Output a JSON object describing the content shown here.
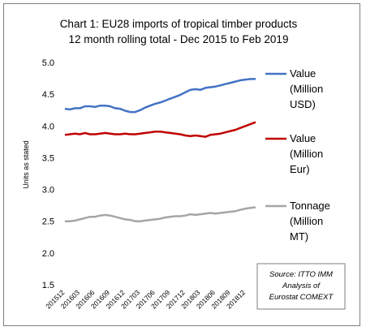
{
  "chart_data": {
    "type": "line",
    "title": "Chart 1: EU28 imports of tropical timber products",
    "subtitle": "12 month rolling total - Dec 2015 to Feb 2019",
    "ylabel": "Units as stated",
    "xlabel": "",
    "ylim": [
      1.5,
      5.0
    ],
    "yticks": [
      "5.0",
      "4.5",
      "4.0",
      "3.5",
      "3.0",
      "2.5",
      "2.0",
      "1.5"
    ],
    "grid": false,
    "legend_position": "right",
    "x": [
      "201512",
      "201601",
      "201602",
      "201603",
      "201604",
      "201605",
      "201606",
      "201607",
      "201608",
      "201609",
      "201610",
      "201611",
      "201612",
      "201701",
      "201702",
      "201703",
      "201704",
      "201705",
      "201706",
      "201707",
      "201708",
      "201709",
      "201710",
      "201711",
      "201712",
      "201801",
      "201802",
      "201803",
      "201804",
      "201805",
      "201806",
      "201807",
      "201808",
      "201809",
      "201810",
      "201811",
      "201812",
      "201901",
      "201902"
    ],
    "xticks": [
      "201512",
      "201603",
      "201606",
      "201609",
      "201612",
      "201703",
      "201706",
      "201709",
      "201712",
      "201803",
      "201806",
      "201809",
      "201812"
    ],
    "series": [
      {
        "name_lines": [
          "Value",
          "(Million",
          "USD)"
        ],
        "color": "#4472c4",
        "values": [
          4.27,
          4.26,
          4.28,
          4.28,
          4.31,
          4.31,
          4.3,
          4.32,
          4.32,
          4.31,
          4.28,
          4.27,
          4.24,
          4.22,
          4.22,
          4.25,
          4.29,
          4.32,
          4.35,
          4.37,
          4.4,
          4.43,
          4.46,
          4.49,
          4.53,
          4.57,
          4.58,
          4.57,
          4.6,
          4.61,
          4.62,
          4.64,
          4.66,
          4.68,
          4.7,
          4.72,
          4.73,
          4.74,
          4.74
        ]
      },
      {
        "name_lines": [
          "Value",
          "(Million",
          "Eur)"
        ],
        "color": "#c00000",
        "values": [
          3.86,
          3.87,
          3.88,
          3.87,
          3.89,
          3.87,
          3.87,
          3.88,
          3.89,
          3.88,
          3.87,
          3.87,
          3.88,
          3.87,
          3.87,
          3.88,
          3.89,
          3.9,
          3.91,
          3.91,
          3.9,
          3.89,
          3.88,
          3.87,
          3.85,
          3.84,
          3.85,
          3.84,
          3.83,
          3.86,
          3.87,
          3.88,
          3.9,
          3.92,
          3.94,
          3.97,
          4.0,
          4.03,
          4.06
        ]
      },
      {
        "name_lines": [
          "Tonnage",
          "(Million",
          "MT)"
        ],
        "color": "#a6a6a6",
        "values": [
          2.5,
          2.5,
          2.51,
          2.53,
          2.55,
          2.57,
          2.57,
          2.59,
          2.6,
          2.59,
          2.57,
          2.55,
          2.53,
          2.52,
          2.5,
          2.5,
          2.51,
          2.52,
          2.53,
          2.54,
          2.56,
          2.57,
          2.58,
          2.58,
          2.59,
          2.61,
          2.6,
          2.61,
          2.62,
          2.63,
          2.62,
          2.63,
          2.64,
          2.65,
          2.66,
          2.68,
          2.7,
          2.71,
          2.72
        ]
      }
    ],
    "annotation_lines": [
      "Source: ITTO IMM",
      "Analysis of",
      "Eurostat COMEXT"
    ]
  }
}
